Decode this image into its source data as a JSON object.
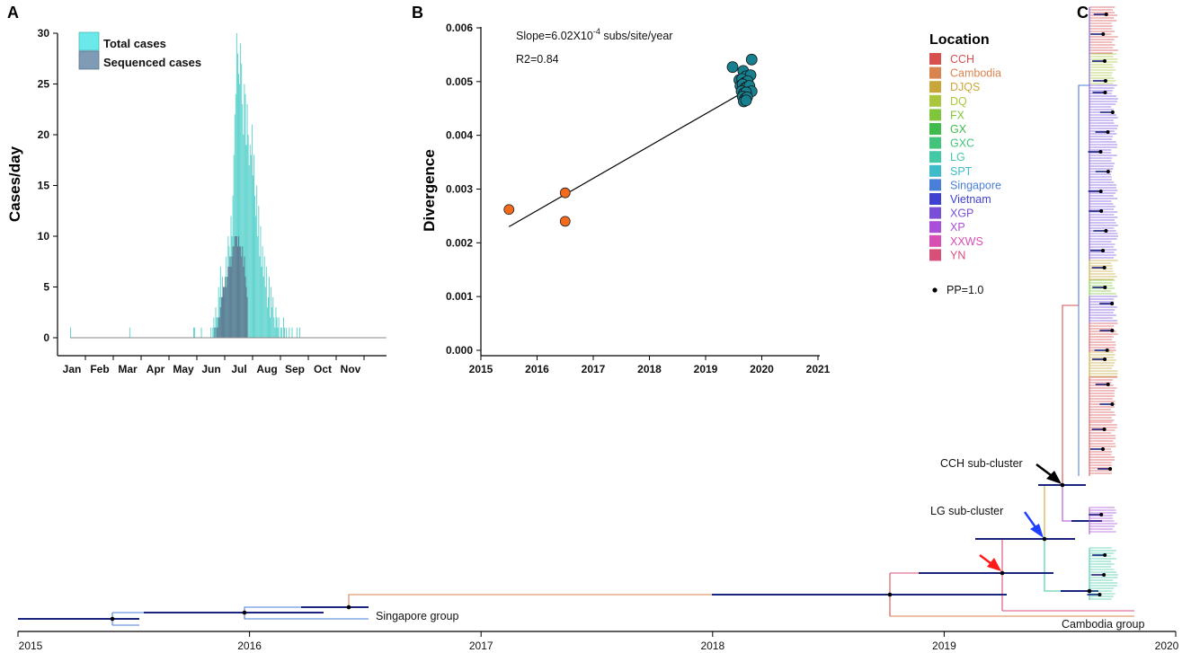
{
  "colors": {
    "total": "#5fd3cd",
    "total_legend": "#6be8ea",
    "sequenced": "#5d7890",
    "sequenced_legend": "#7f9bb5",
    "old_point": "#f26a1b",
    "new_point": "#17808f",
    "node": "#000000",
    "hpd": "#1a237e"
  },
  "chart_data": [
    {
      "panel": "A",
      "type": "bar",
      "title": "A",
      "ylabel": "Cases/day",
      "xlabel": "",
      "ylim": [
        0,
        30
      ],
      "yticks": [
        "0",
        "5",
        "10",
        "15",
        "20",
        "25",
        "30"
      ],
      "months": [
        "Jan",
        "Feb",
        "Mar",
        "Apr",
        "May",
        "Jun",
        "Jul",
        "Aug",
        "Sep",
        "Oct",
        "Nov"
      ],
      "series": [
        {
          "name": "Total cases",
          "day_offset": 0,
          "values": [
            1,
            0,
            0,
            0,
            0,
            0,
            0,
            0,
            0,
            0,
            0,
            0,
            0,
            0,
            0,
            0,
            0,
            0,
            0,
            0,
            0,
            0,
            0,
            0,
            0,
            0,
            0,
            0,
            0,
            0,
            0,
            0,
            0,
            0,
            0,
            0,
            0,
            0,
            0,
            0,
            0,
            0,
            0,
            0,
            0,
            0,
            0,
            0,
            0,
            0,
            0,
            0,
            0,
            0,
            0,
            0,
            0,
            0,
            0,
            0,
            0,
            0,
            1,
            0,
            0,
            0,
            0,
            0,
            0,
            0,
            0,
            0,
            0,
            0,
            0,
            0,
            0,
            0,
            0,
            0,
            0,
            0,
            0,
            0,
            0,
            0,
            0,
            0,
            0,
            0,
            0,
            0,
            0,
            0,
            0,
            0,
            0,
            0,
            0,
            0,
            0,
            0,
            0,
            0,
            0,
            0,
            0,
            0,
            0,
            0,
            0,
            0,
            0,
            0,
            0,
            0,
            0,
            0,
            0,
            0,
            0,
            0,
            0,
            0,
            0,
            0,
            0,
            0,
            0,
            1,
            1,
            0,
            0,
            0,
            0,
            0,
            0,
            1,
            0,
            0,
            0,
            0,
            0,
            0,
            0,
            0,
            0,
            1,
            0,
            1,
            2,
            1,
            3,
            2,
            2,
            5,
            4,
            7,
            3,
            6,
            5,
            4,
            5,
            8,
            6,
            10,
            9,
            7,
            12,
            10,
            14,
            18,
            22,
            24,
            30,
            28,
            26,
            25,
            29,
            27,
            23,
            20,
            25,
            24,
            19,
            23,
            20,
            17,
            19,
            18,
            21,
            16,
            18,
            14,
            12,
            15,
            10,
            13,
            8,
            11,
            7,
            9,
            6,
            8,
            5,
            7,
            3,
            4,
            6,
            2,
            5,
            3,
            4,
            2,
            1,
            3,
            2,
            1,
            2,
            0,
            1,
            1,
            0,
            2,
            1,
            0,
            1,
            0,
            0,
            1,
            0,
            0,
            1,
            0,
            0,
            0,
            0,
            1,
            0,
            0,
            1
          ]
        },
        {
          "name": "Sequenced cases",
          "day_offset": 151,
          "values": [
            1,
            0,
            1,
            1,
            2,
            2,
            3,
            4,
            4,
            5,
            5,
            6,
            5,
            6,
            7,
            7,
            8,
            7,
            8,
            9,
            9,
            10,
            10,
            10,
            9,
            10,
            9,
            9,
            8,
            9,
            7,
            8,
            6,
            5,
            4
          ]
        }
      ],
      "legend": [
        "Total cases",
        "Sequenced cases"
      ],
      "legend_position": "top-left"
    },
    {
      "panel": "B",
      "type": "scatter",
      "title": "B",
      "ylabel": "Divergence",
      "xlabel": "",
      "xlim": [
        2015,
        2021
      ],
      "ylim": [
        0,
        0.006
      ],
      "xticks": [
        "2015",
        "2016",
        "2017",
        "2018",
        "2019",
        "2020",
        "2021"
      ],
      "yticks": [
        "0.000",
        "0.001",
        "0.002",
        "0.003",
        "0.004",
        "0.005",
        "0.006"
      ],
      "annotation_slope": "Slope=6.02X10",
      "annotation_exp": "-4",
      "annotation_units": " subs/site/year",
      "annotation_r2": "R2=0.84",
      "regression": {
        "x": [
          2015.5,
          2019.7
        ],
        "y": [
          0.0023,
          0.00482
        ]
      },
      "series": [
        {
          "name": "early",
          "x": [
            2015.5,
            2016.5,
            2016.5
          ],
          "y": [
            0.00262,
            0.00293,
            0.0024
          ]
        },
        {
          "name": "2019 outbreak",
          "x": [
            2019.48,
            2019.67,
            2019.72,
            2019.8,
            2019.82,
            2019.6,
            2019.65,
            2019.7,
            2019.75,
            2019.62,
            2019.66,
            2019.7,
            2019.74,
            2019.78,
            2019.82,
            2019.64,
            2019.68,
            2019.72,
            2019.66,
            2019.7,
            2019.74,
            2019.68,
            2019.72
          ],
          "y": [
            0.00527,
            0.0052,
            0.0051,
            0.00512,
            0.00541,
            0.00503,
            0.00505,
            0.00498,
            0.00501,
            0.00492,
            0.00495,
            0.00488,
            0.0049,
            0.00492,
            0.00482,
            0.00482,
            0.00478,
            0.0048,
            0.00472,
            0.00468,
            0.00471,
            0.00463,
            0.00465
          ]
        }
      ]
    },
    {
      "panel": "C",
      "type": "tree",
      "title": "C",
      "xlim": [
        2015,
        2020
      ],
      "xticks": [
        "2015",
        "2016",
        "2017",
        "2018",
        "2019",
        "2020"
      ],
      "legend_title": "Location",
      "locations": [
        {
          "name": "CCH",
          "color": "#d84f50"
        },
        {
          "name": "Cambodia",
          "color": "#d9834e"
        },
        {
          "name": "DJQS",
          "color": "#c9a63b"
        },
        {
          "name": "DQ",
          "color": "#a9c63d"
        },
        {
          "name": "FX",
          "color": "#7fc63d"
        },
        {
          "name": "GX",
          "color": "#3fbb4e"
        },
        {
          "name": "GXC",
          "color": "#43c47c"
        },
        {
          "name": "LG",
          "color": "#43c9a6"
        },
        {
          "name": "SPT",
          "color": "#3ebbc9"
        },
        {
          "name": "Singapore",
          "color": "#4a7fd8"
        },
        {
          "name": "Vietnam",
          "color": "#3f3fd0"
        },
        {
          "name": "XGP",
          "color": "#7a4fd8"
        },
        {
          "name": "XP",
          "color": "#a94fd8"
        },
        {
          "name": "XXWS",
          "color": "#d84fb3"
        },
        {
          "name": "YN",
          "color": "#d84f7a"
        }
      ],
      "pp_label": "PP=1.0",
      "annotations": {
        "cch": "CCH sub-cluster",
        "lg": "LG sub-cluster",
        "singapore": "Singapore group",
        "cambodia": "Cambodia group"
      }
    }
  ]
}
